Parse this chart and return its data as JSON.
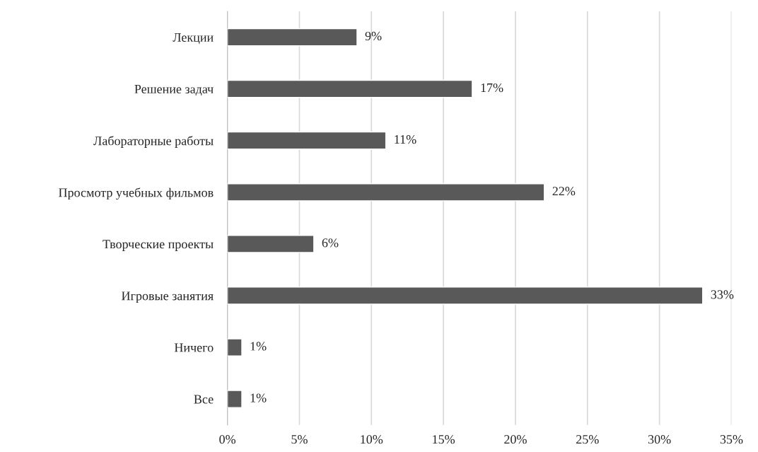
{
  "chart_data": {
    "type": "bar",
    "orientation": "horizontal",
    "categories": [
      "Лекции",
      "Решение задач",
      "Лабораторные работы",
      "Просмотр учебных фильмов",
      "Творческие проекты",
      "Игровые занятия",
      "Ничего",
      "Все"
    ],
    "values": [
      9,
      17,
      11,
      22,
      6,
      33,
      1,
      1
    ],
    "value_labels": [
      "9%",
      "17%",
      "11%",
      "22%",
      "6%",
      "33%",
      "1%",
      "1%"
    ],
    "color": "#595959",
    "xlim": [
      0,
      35
    ],
    "xticks": [
      {
        "value": 0,
        "label": "0%"
      },
      {
        "value": 5,
        "label": "5%"
      },
      {
        "value": 10,
        "label": "10%"
      },
      {
        "value": 15,
        "label": "15%"
      },
      {
        "value": 20,
        "label": "20%"
      },
      {
        "value": 25,
        "label": "25%"
      },
      {
        "value": 30,
        "label": "30%"
      },
      {
        "value": 35,
        "label": "35%"
      }
    ],
    "grid": "x"
  }
}
